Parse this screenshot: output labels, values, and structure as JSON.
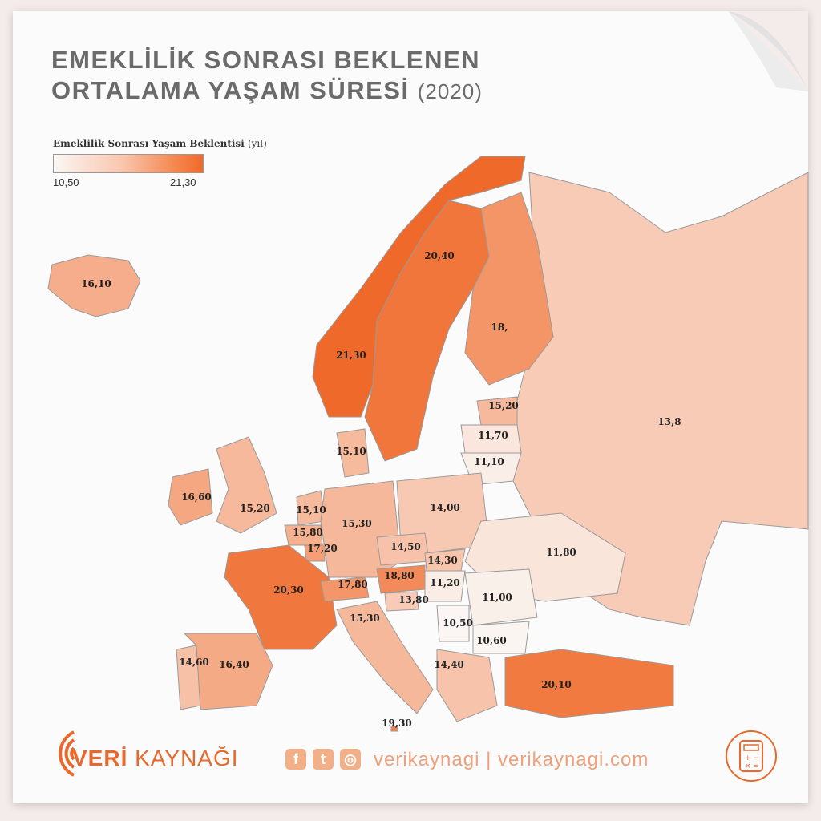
{
  "title": {
    "line1": "EMEKLİLİK SONRASI BEKLENEN",
    "line2": "ORTALAMA YAŞAM SÜRESİ",
    "year": "(2020)"
  },
  "legend": {
    "title": "Emeklilik Sonrası Yaşam Beklentisi",
    "unit": "(yıl)",
    "min": "10,50",
    "max": "21,30"
  },
  "colors": {
    "low": "#fbf6f3",
    "high": "#ef6a2a",
    "accent": "#e8692b"
  },
  "regions": [
    {
      "label": "16,10",
      "value": 16.1
    },
    {
      "label": "20,40",
      "value": 20.4
    },
    {
      "label": "21,30",
      "value": 21.3
    },
    {
      "label": "18,",
      "value": 18.0
    },
    {
      "label": "15,20",
      "value": 15.2
    },
    {
      "label": "11,70",
      "value": 11.7
    },
    {
      "label": "11,10",
      "value": 11.1
    },
    {
      "label": "13,8",
      "value": 13.8
    },
    {
      "label": "15,10",
      "value": 15.1
    },
    {
      "label": "16,60",
      "value": 16.6
    },
    {
      "label": "15,20",
      "value": 15.2
    },
    {
      "label": "15,10",
      "value": 15.1
    },
    {
      "label": "14,00",
      "value": 14.0
    },
    {
      "label": "15,80",
      "value": 15.8
    },
    {
      "label": "15,30",
      "value": 15.3
    },
    {
      "label": "17,20",
      "value": 17.2
    },
    {
      "label": "14,50",
      "value": 14.5
    },
    {
      "label": "11,80",
      "value": 11.8
    },
    {
      "label": "14,30",
      "value": 14.3
    },
    {
      "label": "20,30",
      "value": 20.3
    },
    {
      "label": "17,80",
      "value": 17.8
    },
    {
      "label": "18,80",
      "value": 18.8
    },
    {
      "label": "11,20",
      "value": 11.2
    },
    {
      "label": "13,80",
      "value": 13.8
    },
    {
      "label": "11,00",
      "value": 11.0
    },
    {
      "label": "15,30",
      "value": 15.3
    },
    {
      "label": "10,50",
      "value": 10.5
    },
    {
      "label": "10,60",
      "value": 10.6
    },
    {
      "label": "14,60",
      "value": 14.6
    },
    {
      "label": "16,40",
      "value": 16.4
    },
    {
      "label": "14,40",
      "value": 14.4
    },
    {
      "label": "20,10",
      "value": 20.1
    },
    {
      "label": "19,30",
      "value": 19.3
    }
  ],
  "footer": {
    "brand_bold": "VERİ",
    "brand_rest": " KAYNAĞI",
    "social_icons": [
      "facebook-icon",
      "twitter-icon",
      "instagram-icon"
    ],
    "site": "verikaynagi | verikaynagi.com",
    "calculator_icon": "calculator-icon"
  }
}
